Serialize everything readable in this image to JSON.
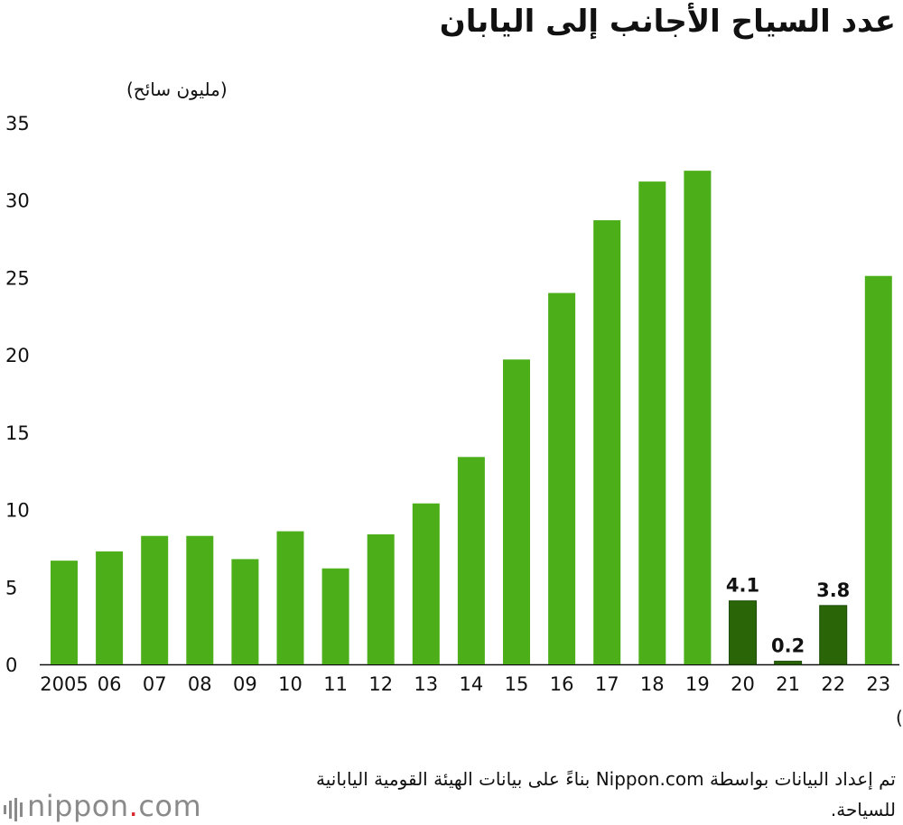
{
  "title": "عدد السياح الأجانب إلى اليابان",
  "chart_data": {
    "type": "bar",
    "title": "عدد السياح الأجانب إلى اليابان",
    "ylabel": "(مليون سائح)",
    "xlabel": "(عام)",
    "ylim": [
      0,
      35
    ],
    "yticks": [
      0,
      5,
      10,
      15,
      20,
      25,
      30,
      35
    ],
    "categories": [
      "2005",
      "06",
      "07",
      "08",
      "09",
      "10",
      "11",
      "12",
      "13",
      "14",
      "15",
      "16",
      "17",
      "18",
      "19",
      "20",
      "21",
      "22",
      "23"
    ],
    "values": [
      6.7,
      7.3,
      8.3,
      8.3,
      6.8,
      8.6,
      6.2,
      8.4,
      10.4,
      13.4,
      19.7,
      24.0,
      28.7,
      31.2,
      31.9,
      4.1,
      0.2,
      3.8,
      25.1
    ],
    "highlighted": [
      "20",
      "21",
      "22"
    ],
    "data_labels": {
      "20": "4.1",
      "21": "0.2",
      "22": "3.8"
    },
    "colors": {
      "normal": "#4caf1a",
      "highlight": "#2a6608"
    }
  },
  "source_note": "تم إعداد البيانات بواسطة Nippon.com بناءً على بيانات الهيئة القومية اليابانية للسياحة.",
  "logo": {
    "name": "nippon",
    "dot": ".",
    "suffix": "com"
  }
}
